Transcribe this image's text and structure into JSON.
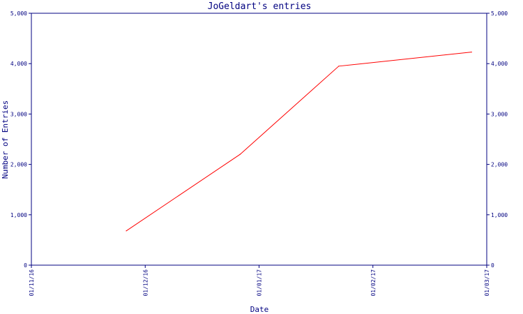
{
  "chart_data": {
    "type": "line",
    "title": "JoGeldart's entries",
    "xlabel": "Date",
    "ylabel": "Number of Entries",
    "ylim": [
      0,
      5000
    ],
    "yticks": [
      0,
      1000,
      2000,
      3000,
      4000,
      5000
    ],
    "ytick_labels": [
      "0",
      "1,000",
      "2,000",
      "3,000",
      "4,000",
      "5,000"
    ],
    "xticks": [
      "01/11/16",
      "01/12/16",
      "01/01/17",
      "01/02/17",
      "01/03/17"
    ],
    "xlim": [
      "2016-11-01",
      "2017-03-01"
    ],
    "grid": false,
    "series": [
      {
        "color": "#ff0000",
        "points": [
          {
            "x": "2016-11-26",
            "y": 680
          },
          {
            "x": "2016-12-26",
            "y": 2200
          },
          {
            "x": "2017-01-21",
            "y": 3950
          },
          {
            "x": "2017-02-25",
            "y": 4230
          }
        ]
      }
    ]
  }
}
